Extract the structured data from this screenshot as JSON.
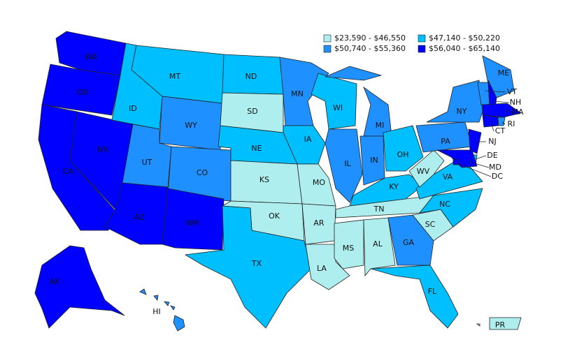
{
  "legend": [
    {
      "label": "$23,590 - $46,550",
      "color": "#aeeeee"
    },
    {
      "label": "$47,140 - $50,220",
      "color": "#00bfff"
    },
    {
      "label": "$50,740 - $55,360",
      "color": "#1e90ff"
    },
    {
      "label": "$56,040 - $65,140",
      "color": "#0000ff"
    }
  ],
  "states": [
    {
      "label": "WA",
      "color": "#0000ff"
    },
    {
      "label": "OR",
      "color": "#0000ff"
    },
    {
      "label": "CA",
      "color": "#0000ff"
    },
    {
      "label": "NV",
      "color": "#0000ff"
    },
    {
      "label": "ID",
      "color": "#00bfff"
    },
    {
      "label": "MT",
      "color": "#00bfff"
    },
    {
      "label": "WY",
      "color": "#1e90ff"
    },
    {
      "label": "UT",
      "color": "#1e90ff"
    },
    {
      "label": "CO",
      "color": "#1e90ff"
    },
    {
      "label": "AZ",
      "color": "#0000ff"
    },
    {
      "label": "NM",
      "color": "#0000ff"
    },
    {
      "label": "ND",
      "color": "#00bfff"
    },
    {
      "label": "SD",
      "color": "#aeeeee"
    },
    {
      "label": "NE",
      "color": "#00bfff"
    },
    {
      "label": "KS",
      "color": "#aeeeee"
    },
    {
      "label": "OK",
      "color": "#aeeeee"
    },
    {
      "label": "TX",
      "color": "#00bfff"
    },
    {
      "label": "MN",
      "color": "#1e90ff"
    },
    {
      "label": "IA",
      "color": "#00bfff"
    },
    {
      "label": "MO",
      "color": "#aeeeee"
    },
    {
      "label": "AR",
      "color": "#aeeeee"
    },
    {
      "label": "LA",
      "color": "#aeeeee"
    },
    {
      "label": "WI",
      "color": "#00bfff"
    },
    {
      "label": "IL",
      "color": "#1e90ff"
    },
    {
      "label": "MI",
      "color": "#1e90ff"
    },
    {
      "label": "IN",
      "color": "#1e90ff"
    },
    {
      "label": "OH",
      "color": "#00bfff"
    },
    {
      "label": "KY",
      "color": "#00bfff"
    },
    {
      "label": "TN",
      "color": "#aeeeee"
    },
    {
      "label": "MS",
      "color": "#aeeeee"
    },
    {
      "label": "AL",
      "color": "#aeeeee"
    },
    {
      "label": "GA",
      "color": "#1e90ff"
    },
    {
      "label": "FL",
      "color": "#00bfff"
    },
    {
      "label": "SC",
      "color": "#aeeeee"
    },
    {
      "label": "NC",
      "color": "#00bfff"
    },
    {
      "label": "VA",
      "color": "#00bfff"
    },
    {
      "label": "WV",
      "color": "#aeeeee"
    },
    {
      "label": "PA",
      "color": "#1e90ff"
    },
    {
      "label": "NY",
      "color": "#1e90ff"
    },
    {
      "label": "NJ",
      "color": "#0000ff"
    },
    {
      "label": "DE",
      "color": "#00bfff"
    },
    {
      "label": "MD",
      "color": "#0000ff"
    },
    {
      "label": "DC",
      "color": "#0000ff"
    },
    {
      "label": "ME",
      "color": "#1e90ff"
    },
    {
      "label": "VT",
      "color": "#1e90ff"
    },
    {
      "label": "NH",
      "color": "#0000ff"
    },
    {
      "label": "MA",
      "color": "#0000ff"
    },
    {
      "label": "CT",
      "color": "#0000ff"
    },
    {
      "label": "RI",
      "color": "#1e90ff"
    },
    {
      "label": "AK",
      "color": "#0000ff"
    },
    {
      "label": "HI",
      "color": "#1e90ff"
    },
    {
      "label": "PR",
      "color": "#aeeeee"
    }
  ]
}
